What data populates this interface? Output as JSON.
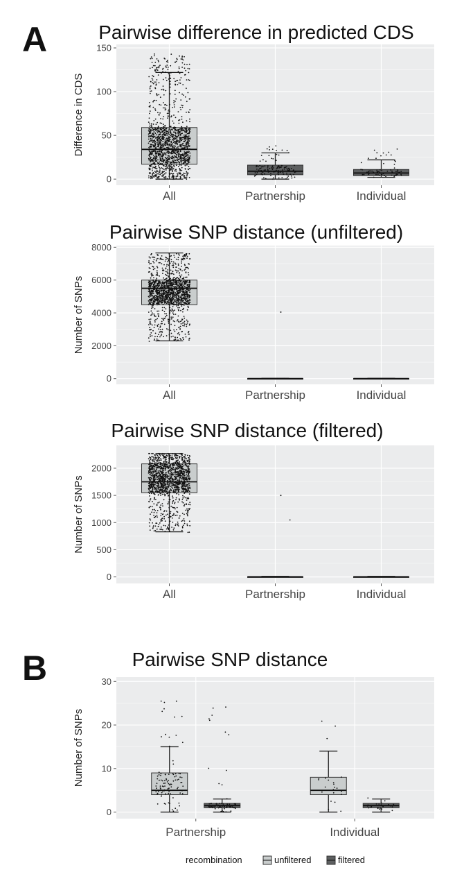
{
  "panels": {
    "A": "A",
    "B": "B"
  },
  "colors": {
    "plot_bg": "#ebeced",
    "grid": "#ffffff",
    "box_light": "#c9cdcd",
    "box_dark": "#5d5f60",
    "points": "#111111",
    "axis_text": "#444444"
  },
  "chart_data": [
    {
      "type": "box",
      "title": "Pairwise difference in predicted CDS",
      "ylabel": "Difference in CDS",
      "categories": [
        "All",
        "Partnership",
        "Individual"
      ],
      "yticks": [
        0,
        50,
        100,
        150
      ],
      "ylim": [
        -7,
        154
      ],
      "boxes": [
        {
          "category": "All",
          "fill": "light",
          "min": 0,
          "q1": 17,
          "median": 34,
          "q3": 59,
          "max": 122,
          "points_range": [
            0,
            143
          ],
          "point_count": 1400
        },
        {
          "category": "Partnership",
          "fill": "dark",
          "min": 0,
          "q1": 5,
          "median": 9,
          "q3": 16,
          "max": 30,
          "points_range": [
            0,
            38
          ],
          "point_count": 130
        },
        {
          "category": "Individual",
          "fill": "dark",
          "min": 2,
          "q1": 4,
          "median": 7,
          "q3": 11,
          "max": 22,
          "points_range": [
            2,
            38
          ],
          "point_count": 70
        }
      ]
    },
    {
      "type": "box",
      "title": "Pairwise SNP distance (unfiltered)",
      "ylabel": "Number of SNPs",
      "categories": [
        "All",
        "Partnership",
        "Individual"
      ],
      "yticks": [
        0,
        2000,
        4000,
        6000,
        8000
      ],
      "ylim": [
        -350,
        8100
      ],
      "boxes": [
        {
          "category": "All",
          "fill": "light",
          "min": 2300,
          "q1": 4500,
          "median": 5500,
          "q3": 6000,
          "max": 7650,
          "points_range": [
            0,
            7600
          ],
          "point_count": 1400
        },
        {
          "category": "Partnership",
          "fill": "light",
          "min": 0,
          "q1": 0,
          "median": 3,
          "q3": 10,
          "max": 20,
          "points_range": [
            0,
            4050
          ],
          "point_count": 3
        },
        {
          "category": "Individual",
          "fill": "light",
          "min": 0,
          "q1": 0,
          "median": 3,
          "q3": 10,
          "max": 20,
          "points_range": [
            0,
            20
          ],
          "point_count": 0
        }
      ]
    },
    {
      "type": "box",
      "title": "Pairwise SNP distance (filtered)",
      "ylabel": "Number of SNPs",
      "categories": [
        "All",
        "Partnership",
        "Individual"
      ],
      "yticks": [
        0,
        500,
        1000,
        1500,
        2000
      ],
      "ylim": [
        -120,
        2420
      ],
      "boxes": [
        {
          "category": "All",
          "fill": "light",
          "min": 830,
          "q1": 1550,
          "median": 1750,
          "q3": 2080,
          "max": 2270,
          "points_range": [
            0,
            2270
          ],
          "point_count": 1400
        },
        {
          "category": "Partnership",
          "fill": "light",
          "min": 0,
          "q1": 0,
          "median": 2,
          "q3": 5,
          "max": 10,
          "points_range": [
            0,
            1500
          ],
          "point_count": 3
        },
        {
          "category": "Individual",
          "fill": "light",
          "min": 0,
          "q1": 0,
          "median": 2,
          "q3": 5,
          "max": 10,
          "points_range": [
            0,
            10
          ],
          "point_count": 0
        }
      ]
    },
    {
      "type": "box",
      "title": "Pairwise SNP distance",
      "ylabel": "Number of SNPs",
      "categories": [
        "Partnership",
        "Individual"
      ],
      "yticks": [
        0,
        10,
        20,
        30
      ],
      "ylim": [
        -1.5,
        31
      ],
      "legend": {
        "title": "recombination",
        "position": "bottom",
        "items": [
          {
            "label": "unfiltered",
            "fill": "light"
          },
          {
            "label": "filtered",
            "fill": "dark"
          }
        ]
      },
      "boxes": [
        {
          "category": "Partnership",
          "group": "unfiltered",
          "fill": "light",
          "min": 0,
          "q1": 4,
          "median": 5,
          "q3": 9,
          "max": 15,
          "points_range": [
            0,
            27
          ],
          "point_count": 100
        },
        {
          "category": "Partnership",
          "group": "filtered",
          "fill": "dark",
          "min": 0,
          "q1": 1,
          "median": 1.5,
          "q3": 2,
          "max": 3,
          "points_range": [
            0,
            25
          ],
          "point_count": 80
        },
        {
          "category": "Individual",
          "group": "unfiltered",
          "fill": "light",
          "min": 0,
          "q1": 4,
          "median": 5,
          "q3": 8,
          "max": 14,
          "points_range": [
            0,
            22
          ],
          "point_count": 22
        },
        {
          "category": "Individual",
          "group": "filtered",
          "fill": "dark",
          "min": 0,
          "q1": 1,
          "median": 1.5,
          "q3": 2,
          "max": 3,
          "points_range": [
            0,
            4
          ],
          "point_count": 22
        }
      ]
    }
  ]
}
